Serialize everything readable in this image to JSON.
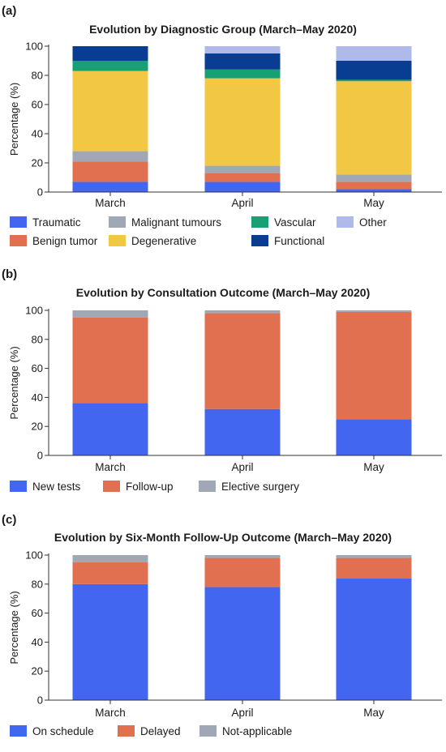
{
  "chart_data": [
    {
      "panel": "(a)",
      "type": "bar",
      "stacked": true,
      "title": "Evolution by Diagnostic Group (March–May 2020)",
      "xlabel": "",
      "ylabel": "Percentage (%)",
      "ylim": [
        0,
        100
      ],
      "yticks": [
        0,
        20,
        40,
        60,
        80,
        100
      ],
      "grid": false,
      "legend_position": "bottom",
      "categories": [
        "March",
        "April",
        "May"
      ],
      "series": [
        {
          "name": "Traumatic",
          "color": "#4266f0",
          "values": [
            7,
            7,
            2
          ]
        },
        {
          "name": "Benign tumor",
          "color": "#e07050",
          "values": [
            14,
            6,
            5
          ]
        },
        {
          "name": "Malignant tumours",
          "color": "#a0a7b5",
          "values": [
            7,
            5,
            5
          ]
        },
        {
          "name": "Degenerative",
          "color": "#f2c744",
          "values": [
            55,
            60,
            64
          ]
        },
        {
          "name": "Vascular",
          "color": "#17a074",
          "values": [
            7,
            6,
            1
          ]
        },
        {
          "name": "Functional",
          "color": "#083d91",
          "values": [
            10,
            11,
            13
          ]
        },
        {
          "name": "Other",
          "color": "#b0baea",
          "values": [
            0,
            5,
            10
          ]
        }
      ],
      "legend_order": [
        [
          "Traumatic",
          "Malignant tumours",
          "Vascular",
          "Other"
        ],
        [
          "Benign tumor",
          "Degenerative",
          "Functional"
        ]
      ]
    },
    {
      "panel": "(b)",
      "type": "bar",
      "stacked": true,
      "title": "Evolution by Consultation Outcome (March–May 2020)",
      "xlabel": "",
      "ylabel": "Percentage (%)",
      "ylim": [
        0,
        100
      ],
      "yticks": [
        0,
        20,
        40,
        60,
        80,
        100
      ],
      "grid": false,
      "legend_position": "bottom",
      "categories": [
        "March",
        "April",
        "May"
      ],
      "series": [
        {
          "name": "New tests",
          "color": "#4266f0",
          "values": [
            36,
            32,
            25
          ]
        },
        {
          "name": "Follow-up",
          "color": "#e07050",
          "values": [
            59,
            66,
            74
          ]
        },
        {
          "name": "Elective surgery",
          "color": "#a0a7b5",
          "values": [
            5,
            2,
            1
          ]
        }
      ]
    },
    {
      "panel": "(c)",
      "type": "bar",
      "stacked": true,
      "title": "Evolution by Six-Month Follow-Up Outcome (March–May 2020)",
      "xlabel": "",
      "ylabel": "Percentage (%)",
      "ylim": [
        0,
        100
      ],
      "yticks": [
        0,
        20,
        40,
        60,
        80,
        100
      ],
      "grid": false,
      "legend_position": "bottom",
      "categories": [
        "March",
        "April",
        "May"
      ],
      "series": [
        {
          "name": "On schedule",
          "color": "#4266f0",
          "values": [
            80,
            78,
            84
          ]
        },
        {
          "name": "Delayed",
          "color": "#e07050",
          "values": [
            15,
            20,
            14
          ]
        },
        {
          "name": "Not-applicable",
          "color": "#a0a7b5",
          "values": [
            5,
            2,
            2
          ]
        }
      ]
    }
  ]
}
